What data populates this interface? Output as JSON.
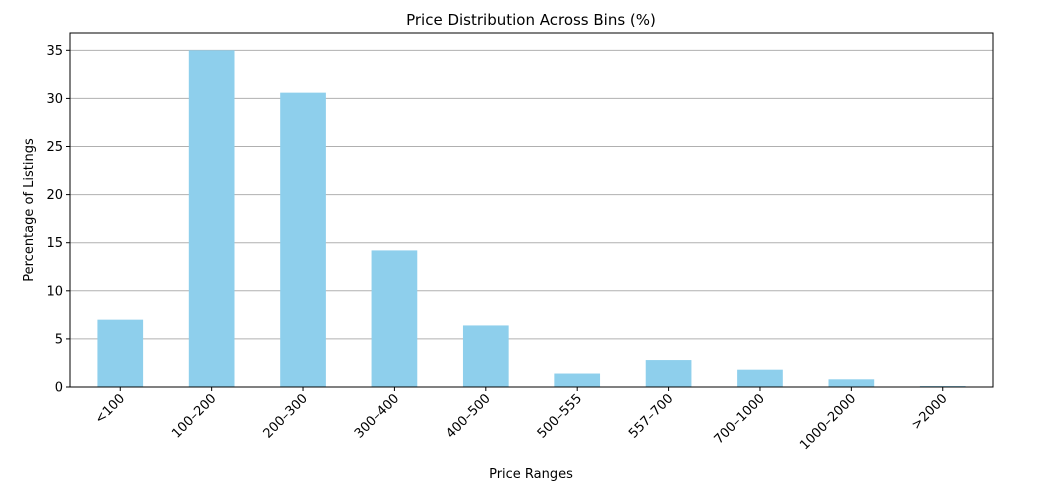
{
  "chart_data": {
    "type": "bar",
    "title": "Price Distribution Across Bins (%)",
    "xlabel": "Price Ranges",
    "ylabel": "Percentage of Listings",
    "categories": [
      "<100",
      "100–200",
      "200–300",
      "300–400",
      "400–500",
      "500–555",
      "557–700",
      "700–1000",
      "1000–2000",
      ">2000"
    ],
    "values": [
      7.0,
      35.0,
      30.6,
      14.2,
      6.4,
      1.4,
      2.8,
      1.8,
      0.8,
      0.1
    ],
    "ylim": [
      0,
      36.8
    ],
    "yticks": [
      0,
      5,
      10,
      15,
      20,
      25,
      30,
      35
    ],
    "grid": "y",
    "bar_color": "#8ecfec"
  }
}
